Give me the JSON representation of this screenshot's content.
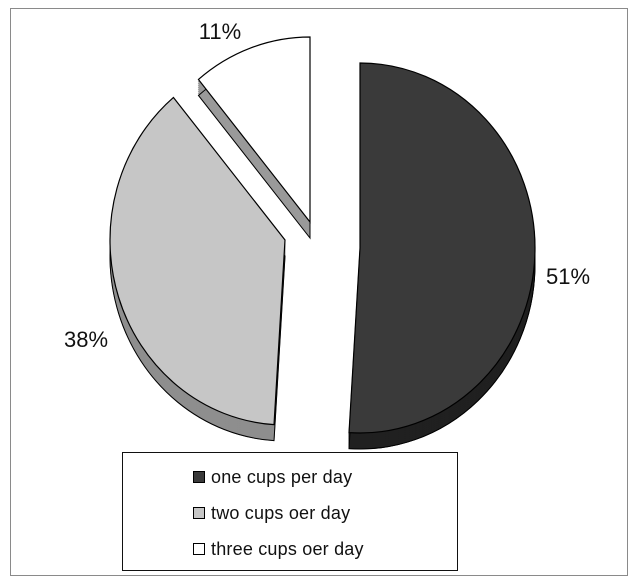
{
  "chart_data": {
    "type": "pie",
    "style": "3d-exploded",
    "categories": [
      "one cups per day",
      "two cups oer day",
      "three cups oer day"
    ],
    "values": [
      51,
      38,
      11
    ],
    "value_labels": [
      "51%",
      "38%",
      "11%"
    ],
    "colors": [
      "#3a3a3a",
      "#c6c6c6",
      "#ffffff"
    ],
    "side_colors": [
      "#202020",
      "#8e8e8e",
      "#9a9a9a"
    ],
    "legend": {
      "position": "bottom",
      "entries": [
        "one cups per day",
        "two cups oer day",
        "three cups oer day"
      ]
    }
  }
}
